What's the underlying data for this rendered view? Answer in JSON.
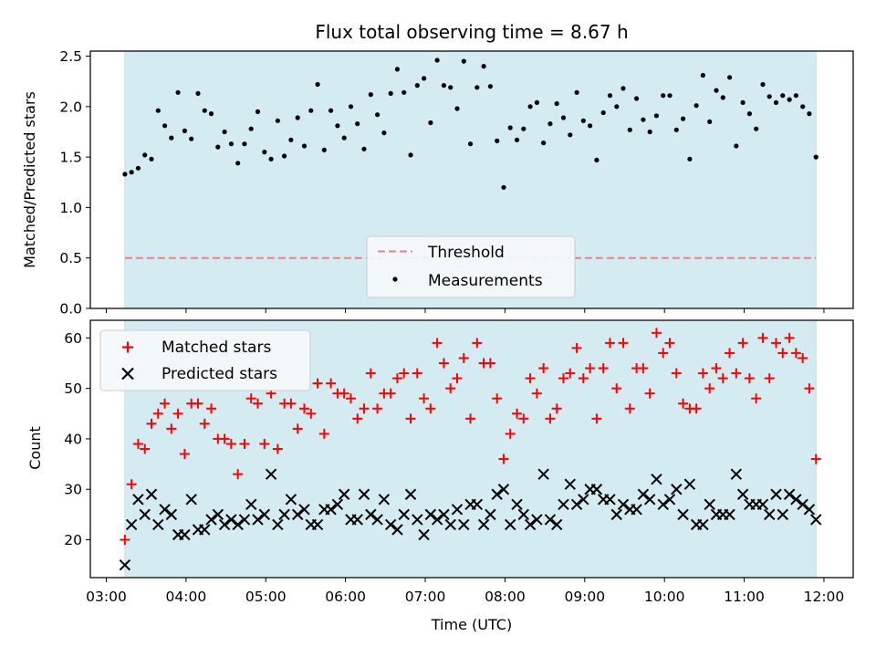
{
  "chart_data": [
    {
      "type": "scatter",
      "title": "Flux total observing time = 8.67 h",
      "ylabel": "Matched/Predicted stars",
      "xlabel": "",
      "ylim": [
        0,
        2.55
      ],
      "yticks": [
        "0.0",
        "0.5",
        "1.0",
        "1.5",
        "2.0",
        "2.5"
      ],
      "ytick_values": [
        0,
        0.5,
        1.0,
        1.5,
        2.0,
        2.5
      ],
      "grid": false,
      "legend_position": "lower center",
      "shaded_span": {
        "start": "03:14",
        "end": "11:54",
        "color": "#d4ebf1"
      },
      "threshold": {
        "name": "Threshold",
        "value": 0.5,
        "color": "#f08080"
      },
      "series": [
        {
          "name": "Measurements",
          "color": "#000000",
          "x": [
            "03:14",
            "03:19",
            "03:24",
            "03:29",
            "03:34",
            "03:39",
            "03:44",
            "03:49",
            "03:54",
            "03:59",
            "04:04",
            "04:09",
            "04:14",
            "04:19",
            "04:24",
            "04:29",
            "04:34",
            "04:39",
            "04:44",
            "04:49",
            "04:54",
            "04:59",
            "05:04",
            "05:09",
            "05:14",
            "05:19",
            "05:24",
            "05:29",
            "05:34",
            "05:39",
            "05:44",
            "05:49",
            "05:54",
            "05:59",
            "06:04",
            "06:09",
            "06:14",
            "06:19",
            "06:24",
            "06:29",
            "06:34",
            "06:39",
            "06:44",
            "06:49",
            "06:54",
            "06:59",
            "07:04",
            "07:09",
            "07:14",
            "07:19",
            "07:24",
            "07:29",
            "07:34",
            "07:39",
            "07:44",
            "07:49",
            "07:54",
            "07:59",
            "08:04",
            "08:09",
            "08:14",
            "08:19",
            "08:24",
            "08:29",
            "08:34",
            "08:39",
            "08:44",
            "08:49",
            "08:54",
            "08:59",
            "09:04",
            "09:09",
            "09:14",
            "09:19",
            "09:24",
            "09:29",
            "09:34",
            "09:39",
            "09:44",
            "09:49",
            "09:54",
            "09:59",
            "10:04",
            "10:09",
            "10:14",
            "10:19",
            "10:24",
            "10:29",
            "10:34",
            "10:39",
            "10:44",
            "10:49",
            "10:54",
            "10:59",
            "11:04",
            "11:09",
            "11:14",
            "11:19",
            "11:24",
            "11:29",
            "11:34",
            "11:39",
            "11:44",
            "11:49",
            "11:54"
          ],
          "y": [
            1.33,
            1.35,
            1.39,
            1.52,
            1.48,
            1.96,
            1.81,
            1.69,
            2.14,
            1.76,
            1.68,
            2.13,
            1.96,
            1.93,
            1.6,
            1.75,
            1.63,
            1.44,
            1.63,
            1.78,
            1.95,
            1.55,
            1.48,
            1.86,
            1.51,
            1.67,
            1.89,
            1.61,
            1.96,
            2.22,
            1.57,
            1.96,
            1.81,
            1.69,
            2.0,
            1.83,
            1.58,
            2.12,
            1.92,
            1.74,
            2.13,
            2.37,
            2.14,
            1.52,
            2.21,
            2.28,
            1.84,
            2.46,
            2.21,
            2.19,
            1.98,
            2.45,
            1.63,
            2.19,
            2.4,
            2.2,
            1.66,
            1.2,
            1.79,
            1.67,
            1.78,
            2.0,
            2.04,
            1.64,
            1.83,
            2.03,
            1.89,
            1.72,
            2.14,
            1.86,
            1.81,
            1.47,
            1.94,
            2.11,
            2.0,
            2.18,
            1.77,
            2.08,
            1.87,
            1.75,
            1.91,
            2.11,
            2.11,
            1.77,
            1.88,
            1.48,
            2.01,
            2.31,
            1.85,
            2.16,
            2.09,
            2.29,
            1.61,
            2.04,
            1.93,
            1.78,
            2.22,
            2.1,
            2.04,
            2.11,
            2.07,
            2.11,
            2.0,
            1.93,
            1.5
          ]
        }
      ]
    },
    {
      "type": "scatter",
      "title": "",
      "xlabel": "Time (UTC)",
      "ylabel": "Count",
      "ylim": [
        12.5,
        63.5
      ],
      "yticks": [
        "20",
        "30",
        "40",
        "50",
        "60"
      ],
      "ytick_values": [
        20,
        30,
        40,
        50,
        60
      ],
      "xticks": [
        "03:00",
        "04:00",
        "05:00",
        "06:00",
        "07:00",
        "08:00",
        "09:00",
        "10:00",
        "11:00",
        "12:00"
      ],
      "xlim": [
        "02:48",
        "12:22"
      ],
      "grid": false,
      "legend_position": "upper left",
      "shaded_span": {
        "start": "03:14",
        "end": "11:54",
        "color": "#d4ebf1"
      },
      "series": [
        {
          "name": "Matched stars",
          "color": "#ff0000",
          "marker": "plus",
          "x": [
            "03:14",
            "03:19",
            "03:24",
            "03:29",
            "03:34",
            "03:39",
            "03:44",
            "03:49",
            "03:54",
            "03:59",
            "04:04",
            "04:09",
            "04:14",
            "04:19",
            "04:24",
            "04:29",
            "04:34",
            "04:39",
            "04:44",
            "04:49",
            "04:54",
            "04:59",
            "05:04",
            "05:09",
            "05:14",
            "05:19",
            "05:24",
            "05:29",
            "05:34",
            "05:39",
            "05:44",
            "05:49",
            "05:54",
            "05:59",
            "06:04",
            "06:09",
            "06:14",
            "06:19",
            "06:24",
            "06:29",
            "06:34",
            "06:39",
            "06:44",
            "06:49",
            "06:54",
            "06:59",
            "07:04",
            "07:09",
            "07:14",
            "07:19",
            "07:24",
            "07:29",
            "07:34",
            "07:39",
            "07:44",
            "07:49",
            "07:54",
            "07:59",
            "08:04",
            "08:09",
            "08:14",
            "08:19",
            "08:24",
            "08:29",
            "08:34",
            "08:39",
            "08:44",
            "08:49",
            "08:54",
            "08:59",
            "09:04",
            "09:09",
            "09:14",
            "09:19",
            "09:24",
            "09:29",
            "09:34",
            "09:39",
            "09:44",
            "09:49",
            "09:54",
            "09:59",
            "10:04",
            "10:09",
            "10:14",
            "10:19",
            "10:24",
            "10:29",
            "10:34",
            "10:39",
            "10:44",
            "10:49",
            "10:54",
            "10:59",
            "11:04",
            "11:09",
            "11:14",
            "11:19",
            "11:24",
            "11:29",
            "11:34",
            "11:39",
            "11:44",
            "11:49",
            "11:54"
          ],
          "y": [
            20,
            31,
            39,
            38,
            43,
            45,
            47,
            42,
            45,
            37,
            47,
            47,
            43,
            46,
            40,
            40,
            39,
            33,
            39,
            48,
            47,
            39,
            49,
            38,
            47,
            47,
            42,
            46,
            45,
            51,
            41,
            51,
            49,
            49,
            48,
            44,
            46,
            53,
            46,
            49,
            49,
            52,
            53,
            44,
            53,
            48,
            46,
            59,
            55,
            50,
            52,
            56,
            44,
            59,
            55,
            55,
            48,
            36,
            41,
            45,
            44,
            52,
            49,
            54,
            44,
            46,
            52,
            53,
            58,
            52,
            54,
            44,
            54,
            59,
            50,
            59,
            46,
            54,
            54,
            49,
            61,
            57,
            59,
            53,
            47,
            46,
            46,
            53,
            50,
            54,
            52,
            57,
            53,
            59,
            52,
            48,
            60,
            52,
            59,
            57,
            60,
            57,
            56,
            50,
            36
          ]
        },
        {
          "name": "Predicted stars",
          "color": "#000000",
          "marker": "x",
          "x": [
            "03:14",
            "03:19",
            "03:24",
            "03:29",
            "03:34",
            "03:39",
            "03:44",
            "03:49",
            "03:54",
            "03:59",
            "04:04",
            "04:09",
            "04:14",
            "04:19",
            "04:24",
            "04:29",
            "04:34",
            "04:39",
            "04:44",
            "04:49",
            "04:54",
            "04:59",
            "05:04",
            "05:09",
            "05:14",
            "05:19",
            "05:24",
            "05:29",
            "05:34",
            "05:39",
            "05:44",
            "05:49",
            "05:54",
            "05:59",
            "06:04",
            "06:09",
            "06:14",
            "06:19",
            "06:24",
            "06:29",
            "06:34",
            "06:39",
            "06:44",
            "06:49",
            "06:54",
            "06:59",
            "07:04",
            "07:09",
            "07:14",
            "07:19",
            "07:24",
            "07:29",
            "07:34",
            "07:39",
            "07:44",
            "07:49",
            "07:54",
            "07:59",
            "08:04",
            "08:09",
            "08:14",
            "08:19",
            "08:24",
            "08:29",
            "08:34",
            "08:39",
            "08:44",
            "08:49",
            "08:54",
            "08:59",
            "09:04",
            "09:09",
            "09:14",
            "09:19",
            "09:24",
            "09:29",
            "09:34",
            "09:39",
            "09:44",
            "09:49",
            "09:54",
            "09:59",
            "10:04",
            "10:09",
            "10:14",
            "10:19",
            "10:24",
            "10:29",
            "10:34",
            "10:39",
            "10:44",
            "10:49",
            "10:54",
            "10:59",
            "11:04",
            "11:09",
            "11:14",
            "11:19",
            "11:24",
            "11:29",
            "11:34",
            "11:39",
            "11:44",
            "11:49",
            "11:54"
          ],
          "y": [
            15,
            23,
            28,
            25,
            29,
            23,
            26,
            25,
            21,
            21,
            28,
            22,
            22,
            24,
            25,
            23,
            24,
            23,
            24,
            27,
            24,
            25,
            33,
            23,
            25,
            28,
            25,
            26,
            23,
            23,
            26,
            26,
            27,
            29,
            24,
            24,
            29,
            25,
            24,
            28,
            23,
            22,
            25,
            29,
            24,
            21,
            25,
            24,
            25,
            23,
            26,
            23,
            27,
            27,
            23,
            25,
            29,
            30,
            23,
            27,
            25,
            23,
            24,
            33,
            24,
            23,
            27,
            31,
            27,
            28,
            30,
            30,
            28,
            28,
            25,
            27,
            26,
            26,
            29,
            28,
            32,
            27,
            28,
            30,
            25,
            31,
            23,
            23,
            27,
            25,
            25,
            25,
            33,
            29,
            27,
            27,
            27,
            25,
            29,
            25,
            29,
            28,
            27,
            26,
            24
          ]
        }
      ]
    }
  ]
}
